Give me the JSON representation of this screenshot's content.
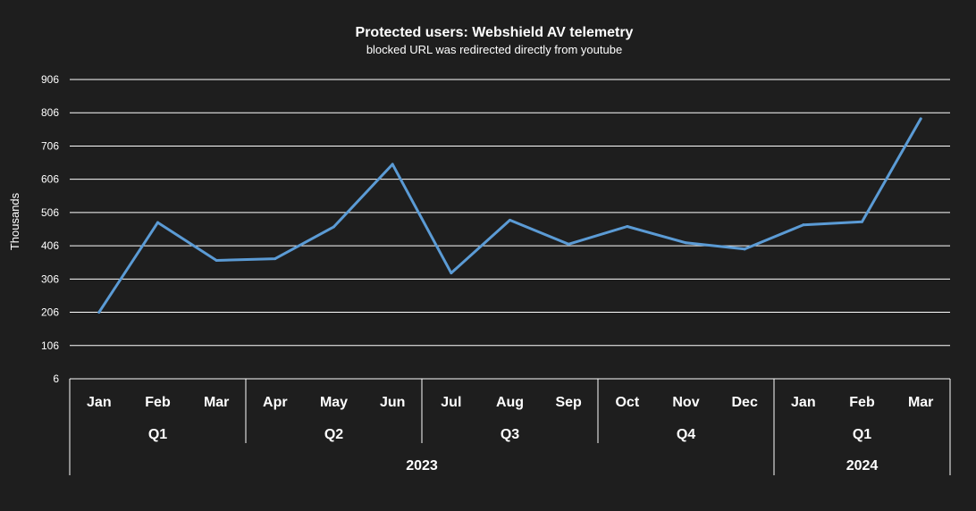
{
  "chart_data": {
    "type": "line",
    "title": "Protected users: Webshield AV telemetry",
    "subtitle": "blocked URL was redirected directly from youtube",
    "ylabel": "Thousands",
    "ylim": [
      6,
      906
    ],
    "yticks": [
      6,
      106,
      206,
      306,
      406,
      506,
      606,
      706,
      806,
      906
    ],
    "grid": true,
    "legend": "none",
    "categories": [
      "Jan",
      "Feb",
      "Mar",
      "Apr",
      "May",
      "Jun",
      "Jul",
      "Aug",
      "Sep",
      "Oct",
      "Nov",
      "Dec",
      "Jan",
      "Feb",
      "Mar"
    ],
    "quarters": [
      {
        "label": "Q1",
        "span": 3
      },
      {
        "label": "Q2",
        "span": 3
      },
      {
        "label": "Q3",
        "span": 3
      },
      {
        "label": "Q4",
        "span": 3
      },
      {
        "label": "Q1",
        "span": 3
      }
    ],
    "years": [
      {
        "label": "2023",
        "span": 12
      },
      {
        "label": "2024",
        "span": 3
      }
    ],
    "series": [
      {
        "color": "#5b9bd5",
        "values": [
          206,
          476,
          362,
          367,
          463,
          651,
          324,
          483,
          411,
          464,
          415,
          396,
          469,
          478,
          788
        ]
      }
    ]
  }
}
